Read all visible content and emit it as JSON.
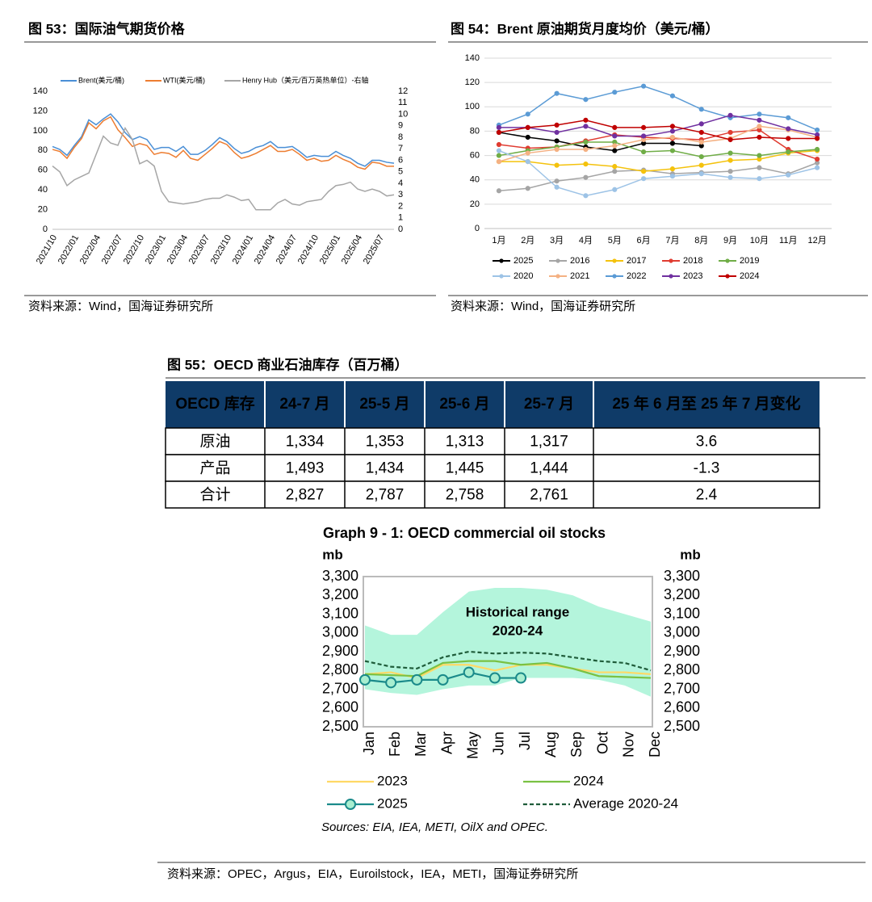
{
  "figures": [
    {
      "caption": "图 53：国际油气期货价格",
      "source": "资料来源：Wind，国海证券研究所"
    },
    {
      "caption": "图 54：Brent 原油期货月度均价（美元/桶）",
      "source": "资料来源：Wind，国海证券研究所"
    },
    {
      "caption": "图 55：OECD 商业石油库存（百万桶）",
      "source": "资料来源：OPEC，Argus，EIA，Euroilstock，IEA，METI，国海证券研究所"
    }
  ],
  "table": {
    "header": [
      "OECD 库存",
      "24-7 月",
      "25-5 月",
      "25-6 月",
      "25-7 月",
      "25 年 6 月至 25 年 7 月变化"
    ],
    "rows": [
      [
        "原油",
        "1,334",
        "1,353",
        "1,313",
        "1,317",
        "3.6"
      ],
      [
        "产品",
        "1,493",
        "1,434",
        "1,445",
        "1,444",
        "-1.3"
      ],
      [
        "合计",
        "2,827",
        "2,787",
        "2,758",
        "2,761",
        "2.4"
      ]
    ]
  },
  "chart_data": [
    {
      "type": "line",
      "categories": [
        "2021/10",
        null,
        null,
        "2022/01",
        null,
        null,
        "2022/04",
        null,
        null,
        "2022/07",
        null,
        null,
        "2022/10",
        null,
        null,
        "2023/01",
        null,
        null,
        "2023/04",
        null,
        null,
        "2023/07",
        null,
        null,
        "2023/10",
        null,
        null,
        "2024/01",
        null,
        null,
        "2024/04",
        null,
        null,
        "2024/07",
        null,
        null,
        "2024/10",
        null,
        null,
        "2025/01",
        null,
        null,
        "2025/04",
        null,
        null,
        "2025/07",
        null,
        null
      ],
      "series": [
        {
          "name": "Brent(美元/桶)",
          "color": "#4a8fd6",
          "values": [
            84,
            81,
            75,
            85,
            94,
            111,
            106,
            112,
            117,
            109,
            98,
            91,
            94,
            91,
            81,
            83,
            83,
            79,
            84,
            76,
            76,
            80,
            86,
            93,
            89,
            82,
            77,
            79,
            83,
            85,
            89,
            83,
            83,
            84,
            79,
            73,
            75,
            74,
            74,
            79,
            75,
            72,
            67,
            64,
            70,
            70,
            68,
            67
          ]
        },
        {
          "name": "WTI(美元/桶)",
          "color": "#ed7d31",
          "values": [
            81,
            79,
            72,
            83,
            92,
            108,
            102,
            110,
            114,
            101,
            93,
            84,
            87,
            85,
            76,
            78,
            77,
            73,
            80,
            72,
            70,
            76,
            82,
            89,
            86,
            78,
            72,
            74,
            77,
            81,
            85,
            79,
            79,
            81,
            76,
            70,
            72,
            69,
            70,
            75,
            71,
            68,
            63,
            61,
            68,
            67,
            64,
            64
          ]
        },
        {
          "name": "Henry Hub（美元/百万英热单位）-右轴",
          "color": "#a6a6a6",
          "axis": "y2",
          "values": [
            5.5,
            5.0,
            3.8,
            4.3,
            4.6,
            4.9,
            6.5,
            8.1,
            7.5,
            7.3,
            8.8,
            7.8,
            5.7,
            6.0,
            5.5,
            3.3,
            2.4,
            2.3,
            2.2,
            2.3,
            2.4,
            2.6,
            2.7,
            2.7,
            3.0,
            2.8,
            2.5,
            2.6,
            1.7,
            1.7,
            1.7,
            2.3,
            2.6,
            2.2,
            2.1,
            2.4,
            2.5,
            2.6,
            3.3,
            3.8,
            3.9,
            4.1,
            3.5,
            3.3,
            3.5,
            3.3,
            2.9,
            3.0
          ]
        }
      ],
      "ylim": [
        0,
        140
      ],
      "yticks": [
        0,
        20,
        40,
        60,
        80,
        100,
        120,
        140
      ],
      "y2lim": [
        0,
        12
      ],
      "y2ticks": [
        0,
        1,
        2,
        3,
        4,
        5,
        6,
        7,
        8,
        9,
        10,
        11,
        12
      ],
      "grid": false,
      "legend": "top"
    },
    {
      "type": "line",
      "categories": [
        "1月",
        "2月",
        "3月",
        "4月",
        "5月",
        "6月",
        "7月",
        "8月",
        "9月",
        "10月",
        "11月",
        "12月"
      ],
      "series": [
        {
          "name": "2025",
          "color": "#000000",
          "values": [
            79,
            75,
            72,
            67,
            64,
            70,
            70,
            68,
            null,
            null,
            null,
            null
          ]
        },
        {
          "name": "2016",
          "color": "#a5a5a5",
          "values": [
            31,
            33,
            39,
            42,
            47,
            48,
            45,
            46,
            47,
            50,
            45,
            54
          ]
        },
        {
          "name": "2017",
          "color": "#f4c20d",
          "values": [
            55,
            55,
            52,
            53,
            51,
            47,
            49,
            52,
            56,
            57,
            62,
            64
          ]
        },
        {
          "name": "2018",
          "color": "#e03c31",
          "values": [
            69,
            66,
            67,
            72,
            77,
            75,
            74,
            73,
            79,
            81,
            65,
            57
          ]
        },
        {
          "name": "2019",
          "color": "#70ad47",
          "values": [
            60,
            64,
            67,
            71,
            71,
            63,
            64,
            59,
            62,
            60,
            63,
            65
          ]
        },
        {
          "name": "2020",
          "color": "#9dc3e6",
          "values": [
            64,
            55,
            34,
            27,
            32,
            41,
            43,
            45,
            42,
            41,
            44,
            50
          ]
        },
        {
          "name": "2021",
          "color": "#f4b183",
          "values": [
            55,
            62,
            65,
            65,
            68,
            73,
            75,
            71,
            74,
            84,
            81,
            75
          ]
        },
        {
          "name": "2022",
          "color": "#5b9bd5",
          "values": [
            85,
            94,
            111,
            106,
            112,
            117,
            109,
            98,
            91,
            94,
            91,
            81
          ]
        },
        {
          "name": "2023",
          "color": "#7030a0",
          "values": [
            83,
            83,
            79,
            84,
            76,
            76,
            80,
            86,
            93,
            89,
            82,
            77
          ]
        },
        {
          "name": "2024",
          "color": "#c00000",
          "values": [
            79,
            83,
            85,
            89,
            83,
            83,
            84,
            79,
            73,
            75,
            74,
            74
          ]
        }
      ],
      "ylim": [
        0,
        140
      ],
      "yticks": [
        0,
        20,
        40,
        60,
        80,
        100,
        120,
        140
      ],
      "grid": true,
      "legend": "bottom"
    },
    {
      "type": "line",
      "title": "Graph 9 - 1: OECD commercial oil stocks",
      "ylabel": "mb",
      "annotation": [
        "Historical range",
        "2020-24"
      ],
      "note": "Sources: EIA, IEA, METI, OilX and OPEC.",
      "categories": [
        "Jan",
        "Feb",
        "Mar",
        "Apr",
        "May",
        "Jun",
        "Jul",
        "Aug",
        "Sep",
        "Oct",
        "Nov",
        "Dec"
      ],
      "range": {
        "color": "#b4f5dc",
        "low": [
          2700,
          2680,
          2670,
          2700,
          2720,
          2720,
          2760,
          2760,
          2760,
          2750,
          2720,
          2660
        ],
        "high": [
          3040,
          2990,
          2990,
          3110,
          3220,
          3240,
          3240,
          3230,
          3200,
          3140,
          3100,
          3060
        ]
      },
      "series": [
        {
          "name": "2023",
          "color": "#ffd966",
          "values": [
            2780,
            2790,
            2760,
            2830,
            2830,
            2800,
            2830,
            2830,
            2810,
            2790,
            2790,
            2780
          ]
        },
        {
          "name": "2024",
          "color": "#7ac143",
          "values": [
            2780,
            2775,
            2770,
            2840,
            2850,
            2850,
            2830,
            2840,
            2810,
            2770,
            2765,
            2760
          ]
        },
        {
          "name": "2025",
          "color": "#1a8a8a",
          "values": [
            2750,
            2735,
            2750,
            2750,
            2790,
            2760,
            2760,
            null,
            null,
            null,
            null,
            null
          ]
        },
        {
          "name": "Average 2020-24",
          "color": "#1f5c3a",
          "dashed": true,
          "values": [
            2850,
            2820,
            2810,
            2870,
            2900,
            2890,
            2895,
            2890,
            2870,
            2850,
            2840,
            2800
          ]
        }
      ],
      "ylim": [
        2500,
        3300
      ],
      "yticks": [
        {
          "value": 2500,
          "label": "2,500"
        },
        {
          "value": 2600,
          "label": "2,600"
        },
        {
          "value": 2700,
          "label": "2,700"
        },
        {
          "value": 2800,
          "label": "2,800"
        },
        {
          "value": 2900,
          "label": "2,900"
        },
        {
          "value": 3000,
          "label": "3,000"
        },
        {
          "value": 3100,
          "label": "3,100"
        },
        {
          "value": 3200,
          "label": "3,200"
        },
        {
          "value": 3300,
          "label": "3,300"
        }
      ],
      "grid": false,
      "legend": "bottom"
    }
  ]
}
